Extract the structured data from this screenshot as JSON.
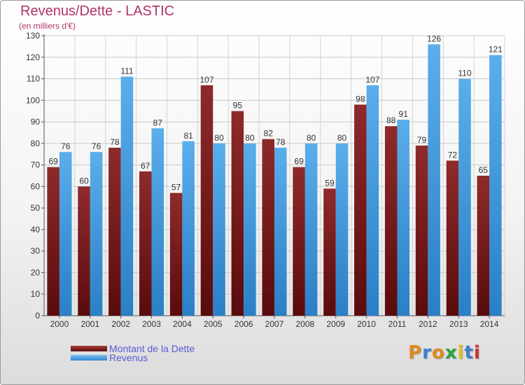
{
  "title": "Revenus/Dette - LASTIC",
  "subtitle": "(en milliers d'€)",
  "colors": {
    "debt": "#7a1f20",
    "revenue": "#4da3e3",
    "title": "#b0346a"
  },
  "legend": {
    "debt_label": "Montant de la Dette",
    "revenue_label": "Revenus"
  },
  "logo": {
    "letters": [
      "P",
      "r",
      "o",
      "x",
      "i",
      "t",
      "i"
    ],
    "colors": [
      "#e08a1a",
      "#3a7fd0",
      "#e08a1a",
      "#2aa33a",
      "#e0c01a",
      "#3a7fd0",
      "#d0302a"
    ]
  },
  "chart_data": {
    "type": "bar",
    "categories": [
      "2000",
      "2001",
      "2002",
      "2003",
      "2004",
      "2005",
      "2006",
      "2007",
      "2008",
      "2009",
      "2010",
      "2011",
      "2012",
      "2013",
      "2014"
    ],
    "series": [
      {
        "name": "Montant de la Dette",
        "values": [
          69,
          60,
          78,
          67,
          57,
          107,
          95,
          82,
          69,
          59,
          98,
          88,
          79,
          72,
          65
        ]
      },
      {
        "name": "Revenus",
        "values": [
          76,
          76,
          111,
          87,
          81,
          80,
          80,
          78,
          80,
          80,
          107,
          91,
          126,
          110,
          121
        ]
      }
    ],
    "ylim": [
      0,
      130
    ],
    "yticks": [
      0,
      10,
      20,
      30,
      40,
      50,
      60,
      70,
      80,
      90,
      100,
      110,
      120,
      130
    ],
    "grid": true,
    "legend_position": "bottom-left"
  }
}
